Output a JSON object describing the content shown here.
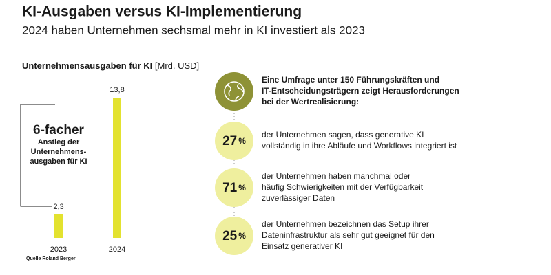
{
  "header": {
    "title": "KI-Ausgaben versus KI-Implementierung",
    "subtitle": "2024 haben Unternehmen sechsmal mehr in KI investiert als 2023"
  },
  "chart_data": {
    "type": "bar",
    "title": "Unternehmensausgaben für KI",
    "unit": "[Mrd. USD]",
    "categories": [
      "2023",
      "2024"
    ],
    "values": [
      2.3,
      13.8
    ],
    "value_labels": [
      "2,3",
      "13,8"
    ],
    "color": "#e3e22f",
    "annotation": {
      "headline": "6-facher",
      "lines": [
        "Anstieg der",
        "Unternehmens-",
        "ausgaben für KI"
      ]
    }
  },
  "survey": {
    "intro": [
      "Eine Umfrage unter 150 Führungskräften und",
      "IT-Entscheidungsträgern zeigt Herausforderungen",
      "bei der Wertrealisierung:"
    ],
    "items": [
      {
        "number": "27",
        "unit": "%",
        "lines": [
          "der Unternehmen sagen, dass generative KI",
          "vollständig in ihre Abläufe und Workflows integriert ist"
        ]
      },
      {
        "number": "71",
        "unit": "%",
        "lines": [
          "der Unternehmen haben manchmal oder",
          "häufig Schwierigkeiten mit der Verfügbarkeit",
          "zuverlässiger Daten"
        ]
      },
      {
        "number": "25",
        "unit": "%",
        "lines": [
          "der Unternehmen bezeichnen das Setup ihrer",
          "Dateninfrastruktur als sehr gut geeignet für den",
          "Einsatz generativer KI"
        ]
      }
    ]
  },
  "source": "Quelle Roland Berger"
}
